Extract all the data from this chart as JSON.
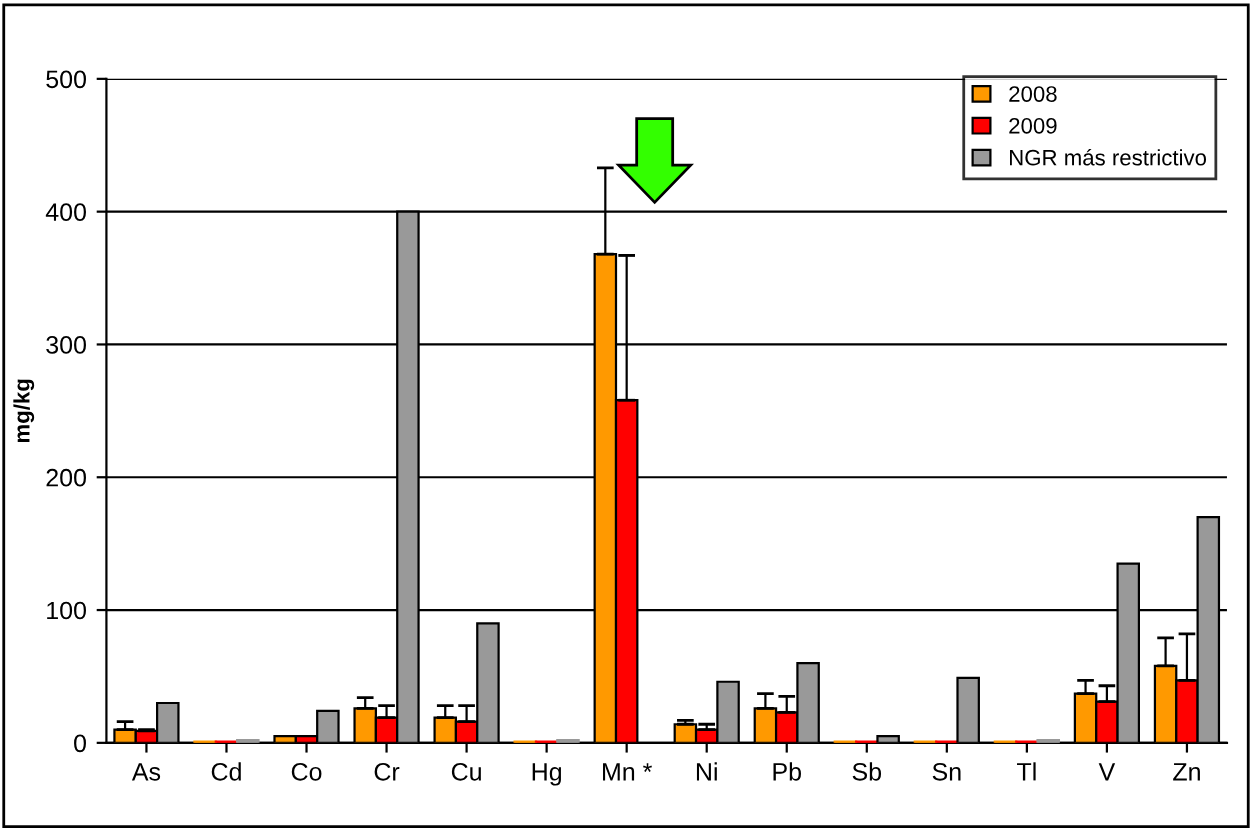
{
  "chart_data": {
    "type": "bar",
    "ylabel": "mg/kg",
    "categories": [
      "As",
      "Cd",
      "Co",
      "Cr",
      "Cu",
      "Hg",
      "Mn *",
      "Ni",
      "Pb",
      "Sb",
      "Sn",
      "Tl",
      "V",
      "Zn"
    ],
    "series": [
      {
        "name": "2008",
        "color": "#ff9900",
        "values": [
          10,
          1,
          5,
          26,
          19,
          1,
          368,
          14,
          26,
          1,
          1,
          1,
          37,
          58
        ],
        "errors": [
          [
            10,
            16
          ],
          null,
          null,
          [
            26,
            34
          ],
          [
            19,
            28
          ],
          null,
          [
            368,
            433
          ],
          [
            14,
            17
          ],
          [
            26,
            37
          ],
          null,
          null,
          null,
          [
            37,
            47
          ],
          [
            58,
            79
          ]
        ]
      },
      {
        "name": "2009",
        "color": "#ff0000",
        "values": [
          9,
          1,
          5,
          19,
          16,
          1,
          258,
          10,
          23,
          1,
          1,
          1,
          31,
          47
        ],
        "errors": [
          [
            9,
            10
          ],
          null,
          null,
          [
            19,
            28
          ],
          [
            16,
            28
          ],
          null,
          [
            258,
            367
          ],
          [
            10,
            14
          ],
          [
            23,
            35
          ],
          null,
          null,
          null,
          [
            31,
            43
          ],
          [
            47,
            82
          ]
        ]
      },
      {
        "name": "NGR más restrictivo",
        "color": "#999999",
        "values": [
          30,
          2,
          24,
          400,
          90,
          2,
          null,
          46,
          60,
          5,
          49,
          2,
          135,
          170
        ]
      }
    ],
    "ylim": [
      0,
      500
    ],
    "yticks": [
      0,
      100,
      200,
      300,
      400,
      500
    ],
    "grid": "y",
    "legend": "top right"
  }
}
